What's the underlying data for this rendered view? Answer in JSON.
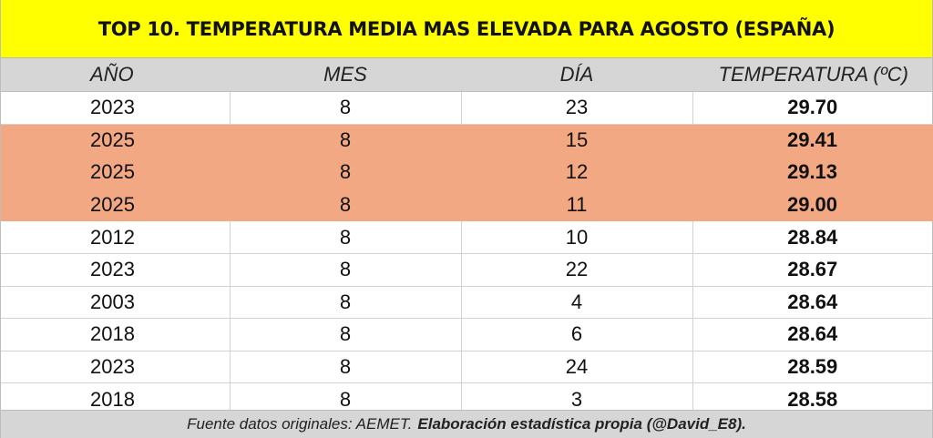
{
  "title": "TOP 10. TEMPERATURA MEDIA MAS ELEVADA PARA AGOSTO (ESPAÑA)",
  "columns": {
    "year": "AÑO",
    "month": "MES",
    "day": "DÍA",
    "temp": "TEMPERATURA (ºC)"
  },
  "highlight_color": "#f2a983",
  "title_bg_color": "#ffff00",
  "rows": [
    {
      "year": "2023",
      "month": "8",
      "day": "23",
      "temp": "29.70",
      "highlight": false
    },
    {
      "year": "2025",
      "month": "8",
      "day": "15",
      "temp": "29.41",
      "highlight": true
    },
    {
      "year": "2025",
      "month": "8",
      "day": "12",
      "temp": "29.13",
      "highlight": true
    },
    {
      "year": "2025",
      "month": "8",
      "day": "11",
      "temp": "29.00",
      "highlight": true
    },
    {
      "year": "2012",
      "month": "8",
      "day": "10",
      "temp": "28.84",
      "highlight": false
    },
    {
      "year": "2023",
      "month": "8",
      "day": "22",
      "temp": "28.67",
      "highlight": false
    },
    {
      "year": "2003",
      "month": "8",
      "day": "4",
      "temp": "28.64",
      "highlight": false
    },
    {
      "year": "2018",
      "month": "8",
      "day": "6",
      "temp": "28.64",
      "highlight": false
    },
    {
      "year": "2023",
      "month": "8",
      "day": "24",
      "temp": "28.59",
      "highlight": false
    },
    {
      "year": "2018",
      "month": "8",
      "day": "3",
      "temp": "28.58",
      "highlight": false
    }
  ],
  "footer": {
    "source": "Fuente datos originales: AEMET.",
    "credit": "Elaboración estadística propia (@David_E8)."
  }
}
